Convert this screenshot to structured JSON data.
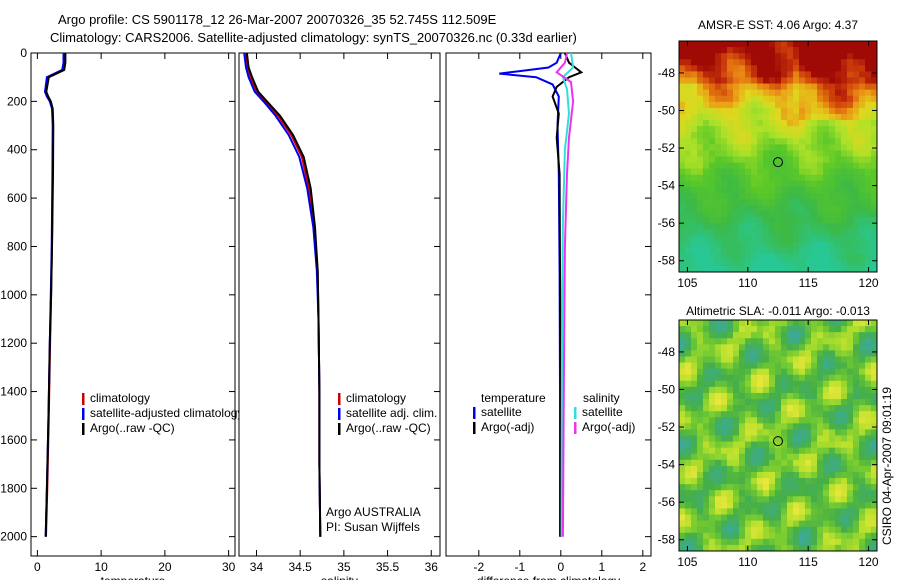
{
  "title": {
    "line1": "Argo profile: CS 5901178_12 26-Mar-2007 20070326_35 52.745S 112.509E",
    "line2": "Climatology: CARS2006. Satellite-adjusted climatology: synTS_20070326.nc (0.33d earlier)"
  },
  "side_stamp": "CSIRO 04-Apr-2007 09:01:19",
  "colors": {
    "climatology": "#cc0000",
    "satellite": "#0000ee",
    "argo": "#000000",
    "sal_satellite": "#33dddd",
    "sal_argo": "#ee33ee"
  },
  "chart_data": [
    {
      "id": "temperature",
      "type": "line",
      "xlabel": "temperature",
      "xlim": [
        -1,
        31
      ],
      "ylim": [
        2080,
        0
      ],
      "xticks": [
        "0",
        "10",
        "20",
        "30"
      ],
      "xtick_values": [
        0,
        10,
        20,
        30
      ],
      "yticks": [
        "0",
        "200",
        "400",
        "600",
        "800",
        "1000",
        "1200",
        "1400",
        "1600",
        "1800",
        "2000"
      ],
      "ytick_values": [
        0,
        200,
        400,
        600,
        800,
        1000,
        1200,
        1400,
        1600,
        1800,
        2000
      ],
      "legend": [
        "climatology",
        "satellite-adjusted climatology",
        "Argo(..raw -QC)"
      ],
      "series": [
        {
          "name": "climatology",
          "color": "#cc0000",
          "x": [
            4.3,
            4.3,
            4.1,
            1.6,
            1.3,
            1.6,
            2.0,
            2.35,
            2.45,
            2.4,
            2.3,
            2.15,
            2.0,
            1.8,
            1.55,
            1.35
          ],
          "y": [
            0,
            40,
            70,
            100,
            160,
            180,
            200,
            230,
            300,
            500,
            800,
            1000,
            1200,
            1500,
            1800,
            2000
          ]
        },
        {
          "name": "satellite",
          "color": "#0000ee",
          "x": [
            4.1,
            4.1,
            3.9,
            1.5,
            1.2,
            1.5,
            1.95,
            2.3,
            2.4,
            2.35,
            2.25,
            2.1,
            1.95,
            1.75,
            1.5,
            1.3
          ],
          "y": [
            0,
            40,
            70,
            100,
            160,
            180,
            200,
            230,
            300,
            500,
            800,
            1000,
            1200,
            1500,
            1800,
            2000
          ]
        },
        {
          "name": "Argo(..raw -QC)",
          "color": "#000000",
          "x": [
            4.4,
            4.4,
            4.2,
            1.8,
            1.4,
            1.7,
            2.1,
            2.4,
            2.5,
            2.45,
            2.3,
            2.15,
            1.95,
            1.75,
            1.5,
            1.3
          ],
          "y": [
            0,
            40,
            70,
            100,
            160,
            180,
            200,
            230,
            300,
            500,
            800,
            1000,
            1200,
            1500,
            1800,
            2000
          ]
        }
      ]
    },
    {
      "id": "salinity",
      "type": "line",
      "xlabel": "salinity",
      "xlim": [
        33.8,
        36.1
      ],
      "ylim": [
        2080,
        0
      ],
      "xticks": [
        "34",
        "34.5",
        "35",
        "35.5",
        "36"
      ],
      "xtick_values": [
        34,
        34.5,
        35,
        35.5,
        36
      ],
      "legend": [
        "climatology",
        "satellite adj. clim.",
        "Argo(..raw -QC)"
      ],
      "annotation": [
        "Argo AUSTRALIA",
        "PI: Susan Wijffels"
      ],
      "series": [
        {
          "name": "climatology",
          "color": "#cc0000",
          "x": [
            33.88,
            33.9,
            33.93,
            34.0,
            34.1,
            34.25,
            34.4,
            34.52,
            34.6,
            34.66,
            34.7,
            34.71,
            34.72,
            34.72,
            34.73
          ],
          "y": [
            0,
            60,
            100,
            160,
            200,
            260,
            340,
            430,
            560,
            720,
            900,
            1100,
            1400,
            1700,
            2000
          ]
        },
        {
          "name": "satellite",
          "color": "#0000ee",
          "x": [
            33.86,
            33.88,
            33.91,
            33.98,
            34.08,
            34.22,
            34.37,
            34.49,
            34.58,
            34.65,
            34.69,
            34.71,
            34.72,
            34.72,
            34.73
          ],
          "y": [
            0,
            60,
            100,
            160,
            200,
            260,
            340,
            430,
            560,
            720,
            900,
            1100,
            1400,
            1700,
            2000
          ]
        },
        {
          "name": "Argo(..raw -QC)",
          "color": "#000000",
          "x": [
            33.89,
            33.91,
            33.95,
            34.02,
            34.12,
            34.27,
            34.42,
            34.54,
            34.62,
            34.67,
            34.7,
            34.71,
            34.72,
            34.72,
            34.73
          ],
          "y": [
            0,
            60,
            100,
            160,
            200,
            260,
            340,
            430,
            560,
            720,
            900,
            1100,
            1400,
            1700,
            2000
          ]
        }
      ]
    },
    {
      "id": "difference",
      "type": "line",
      "xlabel": "difference from climatology",
      "xlim": [
        -2.8,
        2.2
      ],
      "ylim": [
        2080,
        0
      ],
      "xticks": [
        "-2",
        "-1",
        "0",
        "1",
        "2"
      ],
      "xtick_values": [
        -2,
        -1,
        0,
        1,
        2
      ],
      "legend_left_title": "temperature",
      "legend_left": [
        "satellite",
        "Argo(-adj)"
      ],
      "legend_right_title": "salinity",
      "legend_right": [
        "satellite",
        "Argo(-adj)"
      ],
      "series": [
        {
          "name": "temperature satellite",
          "color": "#0000ee",
          "x": [
            0.0,
            -0.1,
            -0.3,
            -1.0,
            -1.5,
            -0.6,
            -0.2,
            -0.05,
            -0.08,
            -0.05,
            -0.03,
            -0.02,
            -0.02
          ],
          "y": [
            0,
            40,
            60,
            75,
            85,
            100,
            130,
            180,
            300,
            500,
            900,
            1400,
            2000
          ]
        },
        {
          "name": "temperature Argo(-adj)",
          "color": "#000000",
          "x": [
            0.1,
            0.2,
            0.35,
            0.5,
            0.2,
            -0.1,
            -0.2,
            -0.05,
            -0.1,
            -0.03,
            -0.02,
            0.0,
            0.0
          ],
          "y": [
            0,
            40,
            60,
            80,
            100,
            140,
            180,
            250,
            350,
            500,
            900,
            1400,
            2000
          ]
        },
        {
          "name": "salinity satellite",
          "color": "#33dddd",
          "x": [
            0.25,
            0.3,
            0.05,
            0.15,
            0.2,
            0.1,
            0.05,
            0.03,
            0.02
          ],
          "y": [
            0,
            60,
            100,
            150,
            250,
            400,
            700,
            1200,
            2000
          ]
        },
        {
          "name": "salinity Argo(-adj)",
          "color": "#ee33ee",
          "x": [
            0.15,
            0.1,
            -0.1,
            0.25,
            0.3,
            0.2,
            0.15,
            0.1,
            0.08,
            0.05
          ],
          "y": [
            0,
            40,
            80,
            120,
            200,
            350,
            500,
            800,
            1200,
            2000
          ]
        }
      ]
    },
    {
      "id": "sst_map",
      "type": "heatmap",
      "title": "AMSR-E SST: 4.06 Argo: 4.37",
      "xlim": [
        104.3,
        120.7
      ],
      "ylim": [
        -58.6,
        -46.3
      ],
      "xticks": [
        "105",
        "110",
        "115",
        "120"
      ],
      "xtick_values": [
        105,
        110,
        115,
        120
      ],
      "yticks": [
        "-48",
        "-50",
        "-52",
        "-54",
        "-56",
        "-58"
      ],
      "ytick_values": [
        -48,
        -50,
        -52,
        -54,
        -56,
        -58
      ],
      "marker": {
        "lon": 112.5,
        "lat": -52.75
      }
    },
    {
      "id": "sla_map",
      "type": "heatmap",
      "title": "Altimetric SLA: -0.011 Argo: -0.013",
      "xlim": [
        104.3,
        120.7
      ],
      "ylim": [
        -58.6,
        -46.3
      ],
      "xticks": [
        "105",
        "110",
        "115",
        "120"
      ],
      "xtick_values": [
        105,
        110,
        115,
        120
      ],
      "yticks": [
        "-48",
        "-50",
        "-52",
        "-54",
        "-56",
        "-58"
      ],
      "ytick_values": [
        -48,
        -50,
        -52,
        -54,
        -56,
        -58
      ],
      "marker": {
        "lon": 112.5,
        "lat": -52.75
      }
    }
  ]
}
